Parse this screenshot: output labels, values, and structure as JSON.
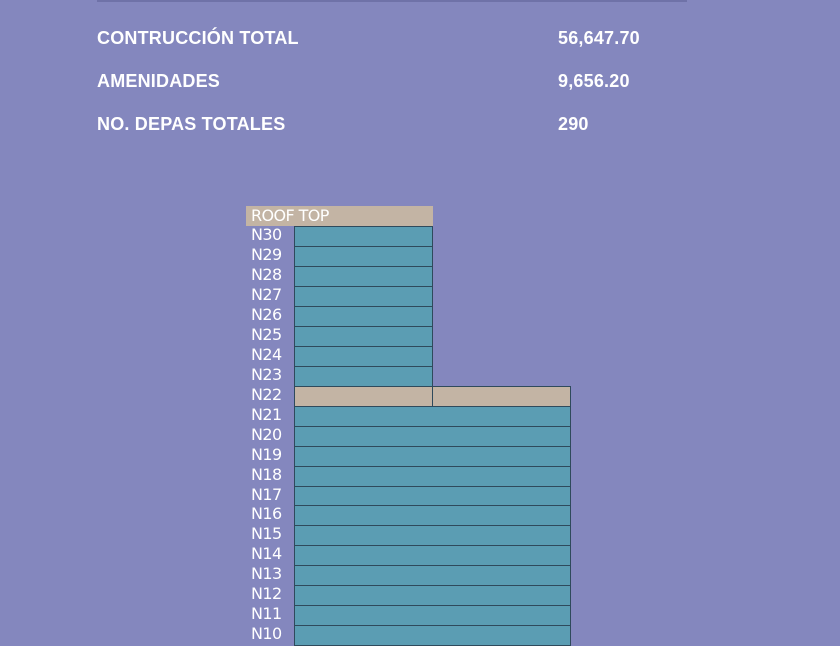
{
  "stats": [
    {
      "label": "CONTRUCCIÓN TOTAL",
      "value": "56,647.70"
    },
    {
      "label": "AMENIDADES",
      "value": "9,656.20"
    },
    {
      "label": "NO. DEPAS TOTALES",
      "value": "290"
    }
  ],
  "building": {
    "roof_label": "ROOF TOP",
    "floors": [
      {
        "name": "N30",
        "type": "apartments",
        "wing": "tower"
      },
      {
        "name": "N29",
        "type": "apartments",
        "wing": "tower"
      },
      {
        "name": "N28",
        "type": "apartments",
        "wing": "tower"
      },
      {
        "name": "N27",
        "type": "apartments",
        "wing": "tower"
      },
      {
        "name": "N26",
        "type": "apartments",
        "wing": "tower"
      },
      {
        "name": "N25",
        "type": "apartments",
        "wing": "tower"
      },
      {
        "name": "N24",
        "type": "apartments",
        "wing": "tower"
      },
      {
        "name": "N23",
        "type": "apartments",
        "wing": "tower"
      },
      {
        "name": "N22",
        "type": "amenities",
        "wing": "full"
      },
      {
        "name": "N21",
        "type": "apartments",
        "wing": "full"
      },
      {
        "name": "N20",
        "type": "apartments",
        "wing": "full"
      },
      {
        "name": "N19",
        "type": "apartments",
        "wing": "full"
      },
      {
        "name": "N18",
        "type": "apartments",
        "wing": "full"
      },
      {
        "name": "N17",
        "type": "apartments",
        "wing": "full"
      },
      {
        "name": "N16",
        "type": "apartments",
        "wing": "full"
      },
      {
        "name": "N15",
        "type": "apartments",
        "wing": "full"
      },
      {
        "name": "N14",
        "type": "apartments",
        "wing": "full"
      },
      {
        "name": "N13",
        "type": "apartments",
        "wing": "full"
      },
      {
        "name": "N12",
        "type": "apartments",
        "wing": "full"
      },
      {
        "name": "N11",
        "type": "apartments",
        "wing": "full"
      },
      {
        "name": "N10",
        "type": "apartments",
        "wing": "full"
      }
    ]
  },
  "colors": {
    "background": "#8487be",
    "apartments": "#5b9db3",
    "amenities": "#c3b4a4",
    "text": "#ffffff"
  }
}
